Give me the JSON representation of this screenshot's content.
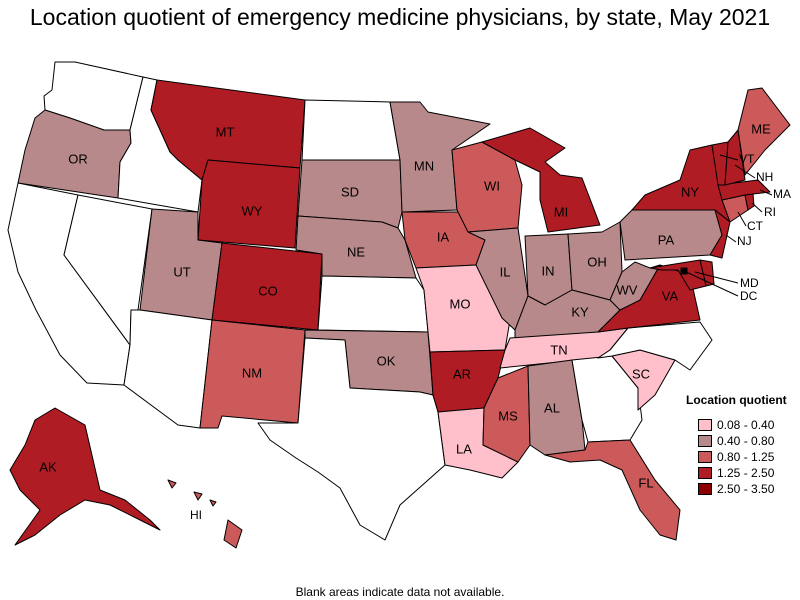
{
  "title": "Location quotient of emergency medicine physicians, by state, May 2021",
  "footnote": "Blank areas indicate data not available.",
  "legend": {
    "title": "Location quotient",
    "classes": [
      {
        "label": "0.08 - 0.40",
        "color": "#ffc0cb"
      },
      {
        "label": "0.40 - 0.80",
        "color": "#b8898a"
      },
      {
        "label": "0.80 - 1.25",
        "color": "#cc5a5a"
      },
      {
        "label": "1.25 - 2.50",
        "color": "#b01c23"
      },
      {
        "label": "2.50 - 3.50",
        "color": "#8b0000"
      }
    ]
  },
  "colors": {
    "no_data": "#ffffff",
    "border": "#000000"
  },
  "states": {
    "WA": {
      "label": "",
      "class": null
    },
    "OR": {
      "label": "OR",
      "class": 1
    },
    "CA": {
      "label": "",
      "class": null
    },
    "ID": {
      "label": "",
      "class": null
    },
    "NV": {
      "label": "",
      "class": null
    },
    "MT": {
      "label": "MT",
      "class": 3
    },
    "WY": {
      "label": "WY",
      "class": 3
    },
    "UT": {
      "label": "UT",
      "class": 1
    },
    "AZ": {
      "label": "",
      "class": null
    },
    "CO": {
      "label": "CO",
      "class": 3
    },
    "NM": {
      "label": "NM",
      "class": 2
    },
    "ND": {
      "label": "",
      "class": null
    },
    "SD": {
      "label": "SD",
      "class": 1
    },
    "NE": {
      "label": "NE",
      "class": 1
    },
    "KS": {
      "label": "",
      "class": null
    },
    "OK": {
      "label": "OK",
      "class": 1
    },
    "TX": {
      "label": "",
      "class": null
    },
    "MN": {
      "label": "MN",
      "class": 1
    },
    "IA": {
      "label": "IA",
      "class": 2
    },
    "MO": {
      "label": "MO",
      "class": 0
    },
    "AR": {
      "label": "AR",
      "class": 3
    },
    "LA": {
      "label": "LA",
      "class": 0
    },
    "WI": {
      "label": "WI",
      "class": 2
    },
    "IL": {
      "label": "IL",
      "class": 1
    },
    "MI": {
      "label": "MI",
      "class": 3
    },
    "IN": {
      "label": "IN",
      "class": 1
    },
    "OH": {
      "label": "OH",
      "class": 1
    },
    "KY": {
      "label": "KY",
      "class": 1
    },
    "TN": {
      "label": "TN",
      "class": 0
    },
    "MS": {
      "label": "MS",
      "class": 2
    },
    "AL": {
      "label": "AL",
      "class": 1
    },
    "GA": {
      "label": "",
      "class": null
    },
    "FL": {
      "label": "FL",
      "class": 2
    },
    "SC": {
      "label": "SC",
      "class": 0
    },
    "NC": {
      "label": "",
      "class": null
    },
    "VA": {
      "label": "VA",
      "class": 3
    },
    "WV": {
      "label": "WV",
      "class": 1
    },
    "PA": {
      "label": "PA",
      "class": 1
    },
    "NY": {
      "label": "NY",
      "class": 3
    },
    "NJ": {
      "label": "NJ",
      "class": 3
    },
    "DE": {
      "label": "",
      "class": 3
    },
    "MD": {
      "label": "MD",
      "class": 3
    },
    "DC": {
      "label": "DC",
      "class": 4
    },
    "CT": {
      "label": "CT",
      "class": 2
    },
    "RI": {
      "label": "RI",
      "class": 3
    },
    "MA": {
      "label": "MA",
      "class": 3
    },
    "VT": {
      "label": "VT",
      "class": 3
    },
    "NH": {
      "label": "NH",
      "class": 3
    },
    "ME": {
      "label": "ME",
      "class": 2
    },
    "AK": {
      "label": "AK",
      "class": 3
    },
    "HI": {
      "label": "HI",
      "class": 2
    }
  }
}
